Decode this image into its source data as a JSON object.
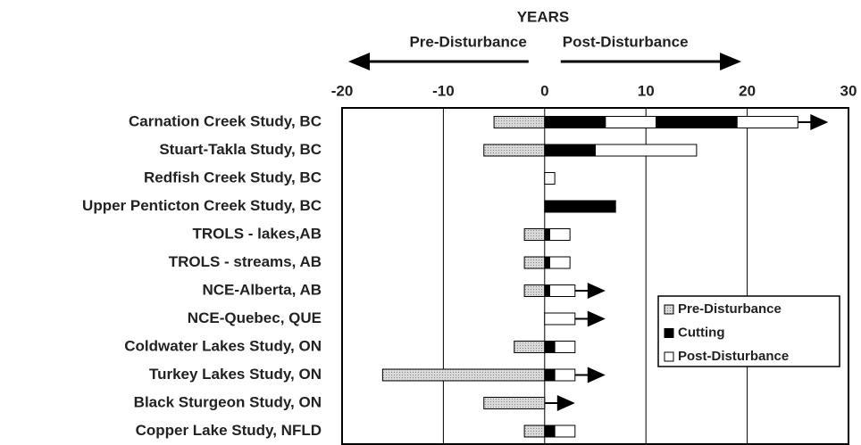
{
  "chart_data": {
    "type": "timeline",
    "x_label": "YEARS",
    "annotations": [
      {
        "text": "Pre-Disturbance",
        "direction": "left"
      },
      {
        "text": "Post-Disturbance",
        "direction": "right"
      }
    ],
    "xlim": [
      -20,
      30
    ],
    "xticks": [
      -20,
      -10,
      0,
      10,
      20,
      30
    ],
    "grid": true,
    "legend": "right",
    "series": [
      {
        "name": "Pre-Disturbance",
        "color": "#c8c8c8"
      },
      {
        "name": "Cutting",
        "color": "#000000"
      },
      {
        "name": "Post-Disturbance",
        "color": "#ffffff"
      }
    ],
    "tasks": [
      {
        "name": "Carnation Creek Study, BC",
        "ongoing": true,
        "segments": [
          {
            "phase": "Pre-Disturbance",
            "start": -5,
            "end": 0
          },
          {
            "phase": "Cutting",
            "start": 0,
            "end": 6
          },
          {
            "phase": "Post-Disturbance",
            "start": 6,
            "end": 11
          },
          {
            "phase": "Cutting",
            "start": 11,
            "end": 19
          },
          {
            "phase": "Post-Disturbance",
            "start": 19,
            "end": 25
          }
        ]
      },
      {
        "name": "Stuart-Takla Study, BC",
        "ongoing": false,
        "segments": [
          {
            "phase": "Pre-Disturbance",
            "start": -6,
            "end": 0
          },
          {
            "phase": "Cutting",
            "start": 0,
            "end": 5
          },
          {
            "phase": "Post-Disturbance",
            "start": 5,
            "end": 15
          }
        ]
      },
      {
        "name": "Redfish Creek Study, BC",
        "ongoing": false,
        "segments": [
          {
            "phase": "Post-Disturbance",
            "start": 0,
            "end": 1
          }
        ]
      },
      {
        "name": "Upper Penticton Creek Study, BC",
        "ongoing": false,
        "segments": [
          {
            "phase": "Cutting",
            "start": 0,
            "end": 7
          }
        ]
      },
      {
        "name": "TROLS - lakes,AB",
        "ongoing": false,
        "segments": [
          {
            "phase": "Pre-Disturbance",
            "start": -2,
            "end": 0
          },
          {
            "phase": "Cutting",
            "start": 0,
            "end": 0.5
          },
          {
            "phase": "Post-Disturbance",
            "start": 0.5,
            "end": 2.5
          }
        ]
      },
      {
        "name": "TROLS - streams, AB",
        "ongoing": false,
        "segments": [
          {
            "phase": "Pre-Disturbance",
            "start": -2,
            "end": 0
          },
          {
            "phase": "Cutting",
            "start": 0,
            "end": 0.5
          },
          {
            "phase": "Post-Disturbance",
            "start": 0.5,
            "end": 2.5
          }
        ]
      },
      {
        "name": "NCE-Alberta, AB",
        "ongoing": true,
        "segments": [
          {
            "phase": "Pre-Disturbance",
            "start": -2,
            "end": 0
          },
          {
            "phase": "Cutting",
            "start": 0,
            "end": 0.5
          },
          {
            "phase": "Post-Disturbance",
            "start": 0.5,
            "end": 3
          }
        ]
      },
      {
        "name": "NCE-Quebec, QUE",
        "ongoing": true,
        "segments": [
          {
            "phase": "Post-Disturbance",
            "start": 0,
            "end": 3
          }
        ]
      },
      {
        "name": "Coldwater Lakes Study, ON",
        "ongoing": false,
        "segments": [
          {
            "phase": "Pre-Disturbance",
            "start": -3,
            "end": 0
          },
          {
            "phase": "Cutting",
            "start": 0,
            "end": 1
          },
          {
            "phase": "Post-Disturbance",
            "start": 1,
            "end": 3
          }
        ]
      },
      {
        "name": "Turkey Lakes Study, ON",
        "ongoing": true,
        "segments": [
          {
            "phase": "Pre-Disturbance",
            "start": -16,
            "end": 0
          },
          {
            "phase": "Cutting",
            "start": 0,
            "end": 1
          },
          {
            "phase": "Post-Disturbance",
            "start": 1,
            "end": 3
          }
        ]
      },
      {
        "name": "Black Sturgeon Study, ON",
        "ongoing": true,
        "segments": [
          {
            "phase": "Pre-Disturbance",
            "start": -6,
            "end": 0
          }
        ]
      },
      {
        "name": "Copper Lake Study, NFLD",
        "ongoing": false,
        "segments": [
          {
            "phase": "Pre-Disturbance",
            "start": -2,
            "end": 0
          },
          {
            "phase": "Cutting",
            "start": 0,
            "end": 1
          },
          {
            "phase": "Post-Disturbance",
            "start": 1,
            "end": 3
          }
        ]
      }
    ]
  }
}
